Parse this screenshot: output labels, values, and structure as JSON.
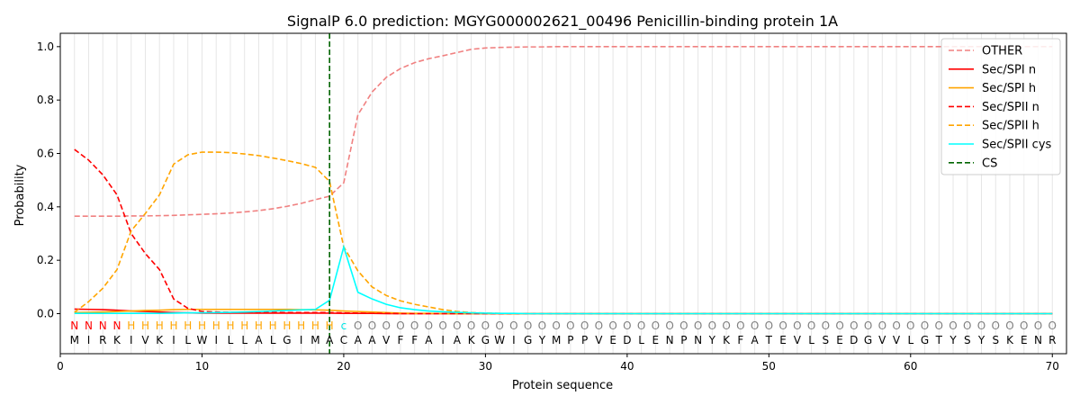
{
  "chart_data": {
    "type": "line",
    "title": "SignalP 6.0 prediction: MGYG000002621_00496 Penicillin-binding protein 1A",
    "xlabel": "Protein sequence",
    "ylabel": "Probability",
    "xlim": [
      0,
      71
    ],
    "ylim": [
      -0.15,
      1.05
    ],
    "xticks": [
      0,
      10,
      20,
      30,
      40,
      50,
      60,
      70
    ],
    "yticks": [
      0.0,
      0.2,
      0.4,
      0.6,
      0.8,
      1.0
    ],
    "grid": "vertical lines at each residue",
    "legend_position": "top-right",
    "sequence": [
      "M",
      "I",
      "R",
      "K",
      "I",
      "V",
      "K",
      "I",
      "L",
      "W",
      "I",
      "L",
      "L",
      "A",
      "L",
      "G",
      "I",
      "M",
      "A",
      "C",
      "A",
      "A",
      "V",
      "F",
      "F",
      "A",
      "I",
      "A",
      "K",
      "G",
      "W",
      "I",
      "G",
      "Y",
      "M",
      "P",
      "P",
      "V",
      "E",
      "D",
      "L",
      "E",
      "N",
      "P",
      "N",
      "Y",
      "K",
      "F",
      "A",
      "T",
      "E",
      "V",
      "L",
      "S",
      "E",
      "D",
      "G",
      "V",
      "V",
      "L",
      "G",
      "T",
      "Y",
      "S",
      "Y",
      "S",
      "K",
      "E",
      "N",
      "R"
    ],
    "region_labels": [
      "N",
      "N",
      "N",
      "N",
      "H",
      "H",
      "H",
      "H",
      "H",
      "H",
      "H",
      "H",
      "H",
      "H",
      "H",
      "H",
      "H",
      "H",
      "H",
      "c",
      "O",
      "O",
      "O",
      "O",
      "O",
      "O",
      "O",
      "O",
      "O",
      "O",
      "O",
      "O",
      "O",
      "O",
      "O",
      "O",
      "O",
      "O",
      "O",
      "O",
      "O",
      "O",
      "O",
      "O",
      "O",
      "O",
      "O",
      "O",
      "O",
      "O",
      "O",
      "O",
      "O",
      "O",
      "O",
      "O",
      "O",
      "O",
      "O",
      "O",
      "O",
      "O",
      "O",
      "O",
      "O",
      "O",
      "O",
      "O",
      "O",
      "O"
    ],
    "region_colors": {
      "N": "#ff0000",
      "H": "#ffa500",
      "c": "#00e5e5",
      "O": "#808080"
    },
    "cleavage_site": 19,
    "series": [
      {
        "name": "OTHER",
        "color": "#f08080",
        "dash": true,
        "values": [
          0.365,
          0.365,
          0.365,
          0.365,
          0.366,
          0.366,
          0.367,
          0.368,
          0.37,
          0.372,
          0.374,
          0.377,
          0.381,
          0.386,
          0.393,
          0.402,
          0.413,
          0.427,
          0.44,
          0.49,
          0.745,
          0.83,
          0.885,
          0.918,
          0.94,
          0.955,
          0.966,
          0.978,
          0.99,
          0.995,
          0.997,
          0.998,
          0.999,
          0.999,
          1.0,
          1.0,
          1.0,
          1.0,
          1.0,
          1.0,
          1.0,
          1.0,
          1.0,
          1.0,
          1.0,
          1.0,
          1.0,
          1.0,
          1.0,
          1.0,
          1.0,
          1.0,
          1.0,
          1.0,
          1.0,
          1.0,
          1.0,
          1.0,
          1.0,
          1.0,
          1.0,
          1.0,
          1.0,
          1.0,
          1.0,
          1.0,
          1.0,
          1.0,
          1.0,
          1.0
        ]
      },
      {
        "name": "Sec/SPI n",
        "color": "#ff0000",
        "dash": false,
        "values": [
          0.017,
          0.016,
          0.015,
          0.013,
          0.01,
          0.008,
          0.006,
          0.004,
          0.003,
          0.002,
          0.002,
          0.002,
          0.002,
          0.002,
          0.002,
          0.002,
          0.002,
          0.002,
          0.002,
          0.001,
          0.001,
          0.001,
          0.0,
          0.0,
          0.0,
          0.0,
          0.0,
          0.0,
          0.0,
          0.0,
          0.0,
          0.0,
          0.0,
          0.0,
          0.0,
          0.0,
          0.0,
          0.0,
          0.0,
          0.0,
          0.0,
          0.0,
          0.0,
          0.0,
          0.0,
          0.0,
          0.0,
          0.0,
          0.0,
          0.0,
          0.0,
          0.0,
          0.0,
          0.0,
          0.0,
          0.0,
          0.0,
          0.0,
          0.0,
          0.0,
          0.0,
          0.0,
          0.0,
          0.0,
          0.0,
          0.0,
          0.0,
          0.0,
          0.0,
          0.0
        ]
      },
      {
        "name": "Sec/SPI h",
        "color": "#ffa500",
        "dash": false,
        "values": [
          0.004,
          0.005,
          0.006,
          0.008,
          0.01,
          0.012,
          0.013,
          0.015,
          0.016,
          0.016,
          0.016,
          0.016,
          0.016,
          0.016,
          0.016,
          0.016,
          0.015,
          0.014,
          0.013,
          0.01,
          0.008,
          0.006,
          0.004,
          0.002,
          0.001,
          0.001,
          0.0,
          0.0,
          0.0,
          0.0,
          0.0,
          0.0,
          0.0,
          0.0,
          0.0,
          0.0,
          0.0,
          0.0,
          0.0,
          0.0,
          0.0,
          0.0,
          0.0,
          0.0,
          0.0,
          0.0,
          0.0,
          0.0,
          0.0,
          0.0,
          0.0,
          0.0,
          0.0,
          0.0,
          0.0,
          0.0,
          0.0,
          0.0,
          0.0,
          0.0,
          0.0,
          0.0,
          0.0,
          0.0,
          0.0,
          0.0,
          0.0,
          0.0,
          0.0,
          0.0
        ]
      },
      {
        "name": "Sec/SPII n",
        "color": "#ff0000",
        "dash": true,
        "values": [
          0.615,
          0.575,
          0.52,
          0.445,
          0.3,
          0.225,
          0.165,
          0.055,
          0.02,
          0.008,
          0.006,
          0.005,
          0.005,
          0.005,
          0.005,
          0.004,
          0.004,
          0.004,
          0.004,
          0.003,
          0.002,
          0.001,
          0.001,
          0.0,
          0.0,
          0.0,
          0.0,
          0.0,
          0.0,
          0.0,
          0.0,
          0.0,
          0.0,
          0.0,
          0.0,
          0.0,
          0.0,
          0.0,
          0.0,
          0.0,
          0.0,
          0.0,
          0.0,
          0.0,
          0.0,
          0.0,
          0.0,
          0.0,
          0.0,
          0.0,
          0.0,
          0.0,
          0.0,
          0.0,
          0.0,
          0.0,
          0.0,
          0.0,
          0.0,
          0.0,
          0.0,
          0.0,
          0.0,
          0.0,
          0.0,
          0.0,
          0.0,
          0.0,
          0.0,
          0.0
        ]
      },
      {
        "name": "Sec/SPII h",
        "color": "#ffa500",
        "dash": true,
        "values": [
          0.005,
          0.045,
          0.095,
          0.165,
          0.31,
          0.375,
          0.445,
          0.56,
          0.595,
          0.605,
          0.605,
          0.603,
          0.598,
          0.592,
          0.583,
          0.573,
          0.562,
          0.548,
          0.495,
          0.25,
          0.16,
          0.1,
          0.068,
          0.048,
          0.035,
          0.025,
          0.015,
          0.008,
          0.004,
          0.002,
          0.001,
          0.0,
          0.0,
          0.0,
          0.0,
          0.0,
          0.0,
          0.0,
          0.0,
          0.0,
          0.0,
          0.0,
          0.0,
          0.0,
          0.0,
          0.0,
          0.0,
          0.0,
          0.0,
          0.0,
          0.0,
          0.0,
          0.0,
          0.0,
          0.0,
          0.0,
          0.0,
          0.0,
          0.0,
          0.0,
          0.0,
          0.0,
          0.0,
          0.0,
          0.0,
          0.0,
          0.0,
          0.0,
          0.0,
          0.0
        ]
      },
      {
        "name": "Sec/SPII cys",
        "color": "#00ffff",
        "dash": false,
        "values": [
          0.001,
          0.001,
          0.001,
          0.001,
          0.001,
          0.001,
          0.001,
          0.002,
          0.003,
          0.003,
          0.004,
          0.005,
          0.006,
          0.008,
          0.01,
          0.012,
          0.014,
          0.016,
          0.05,
          0.25,
          0.08,
          0.055,
          0.035,
          0.022,
          0.015,
          0.01,
          0.007,
          0.005,
          0.003,
          0.002,
          0.001,
          0.001,
          0.0,
          0.0,
          0.0,
          0.0,
          0.0,
          0.0,
          0.0,
          0.0,
          0.0,
          0.0,
          0.0,
          0.0,
          0.0,
          0.0,
          0.0,
          0.0,
          0.0,
          0.0,
          0.0,
          0.0,
          0.0,
          0.0,
          0.0,
          0.0,
          0.0,
          0.0,
          0.0,
          0.0,
          0.0,
          0.0,
          0.0,
          0.0,
          0.0,
          0.0,
          0.0,
          0.0,
          0.0,
          0.0
        ]
      },
      {
        "name": "CS",
        "color": "#006400",
        "dash": true,
        "type": "vline",
        "x": 19
      }
    ]
  }
}
